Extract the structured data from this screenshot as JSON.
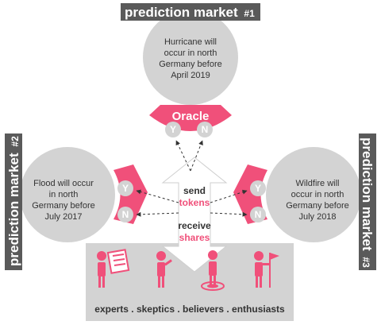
{
  "markets": [
    {
      "label": "prediction market",
      "number": "#1",
      "event": [
        "Hurricane will",
        "occur in north",
        "Germany before",
        "April 2019"
      ]
    },
    {
      "label": "prediction market",
      "number": "#2",
      "event": [
        "Flood will occur",
        "in north",
        "Germany before",
        "July 2017"
      ]
    },
    {
      "label": "prediction market",
      "number": "#3",
      "event": [
        "Wildfire will",
        "occur in north",
        "Germany before",
        "July 2018"
      ]
    }
  ],
  "oracle": {
    "label": "Oracle",
    "yes": "Y",
    "no": "N"
  },
  "outcomes": {
    "yes": "Y",
    "no": "N"
  },
  "flow": {
    "send": "send",
    "tokens": "tokens",
    "receive": "receive",
    "shares": "shares"
  },
  "participants": "experts . skeptics . believers . enthusiasts",
  "colors": {
    "accent": "#f0507a",
    "circle": "#d3d3d3",
    "tag": "#5a5a5a",
    "panel": "#d3d3d3",
    "arrow": "#ffffff"
  }
}
